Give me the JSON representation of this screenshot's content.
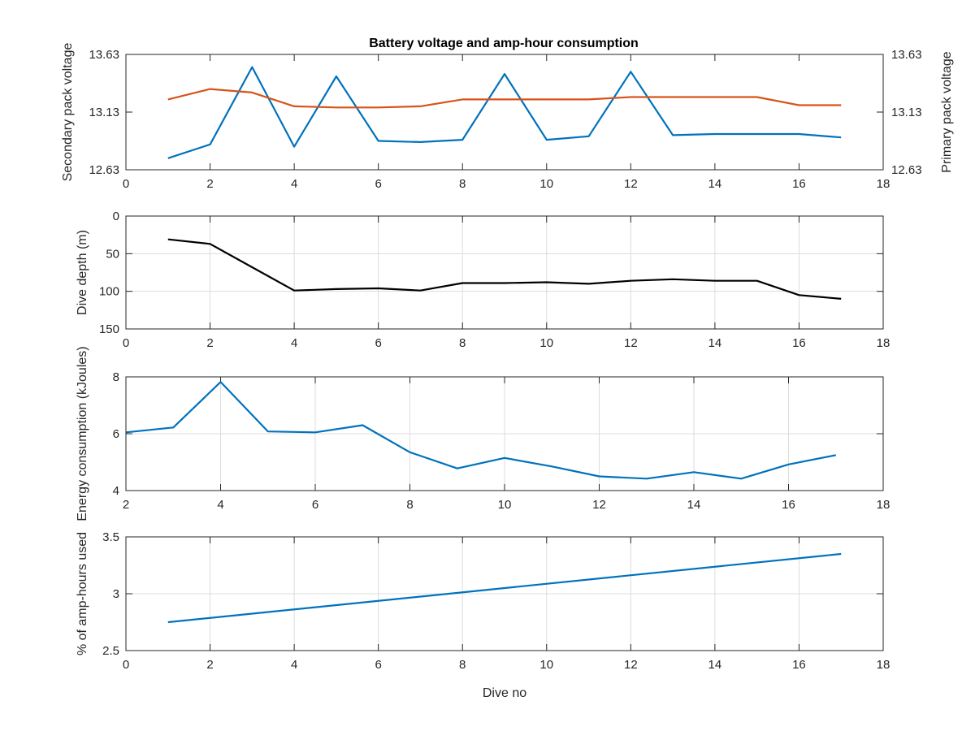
{
  "chart_data": [
    {
      "type": "line",
      "title": "Battery voltage and amp-hour consumption",
      "xlim": [
        0,
        18
      ],
      "xticks": [
        0,
        2,
        4,
        6,
        8,
        10,
        12,
        14,
        16,
        18
      ],
      "ylabel_left": "Secondary pack voltage",
      "ylabel_right": "Primary pack voltage",
      "ylim": [
        12.63,
        13.63
      ],
      "yticks": [
        12.63,
        13.13,
        13.63
      ],
      "grid": false,
      "colors": {
        "left": "#0072BD",
        "right": "#D95319"
      },
      "series": [
        {
          "axis": "left",
          "x": [
            1,
            2,
            3,
            4,
            5,
            6,
            7,
            8,
            9,
            10,
            11,
            12,
            13,
            14,
            15,
            16,
            17
          ],
          "values": [
            12.73,
            12.85,
            13.52,
            12.83,
            13.44,
            12.88,
            12.87,
            12.89,
            13.46,
            12.89,
            12.92,
            13.48,
            12.93,
            12.94,
            12.94,
            12.94,
            12.91
          ]
        },
        {
          "axis": "right",
          "x": [
            1,
            2,
            3,
            4,
            5,
            6,
            7,
            8,
            9,
            10,
            11,
            12,
            13,
            14,
            15,
            16,
            17
          ],
          "values": [
            13.24,
            13.33,
            13.3,
            13.18,
            13.17,
            13.17,
            13.18,
            13.24,
            13.24,
            13.24,
            13.24,
            13.26,
            13.26,
            13.26,
            13.26,
            13.19,
            13.19
          ]
        }
      ]
    },
    {
      "type": "line",
      "ylabel": "Dive depth (m)",
      "xlim": [
        0,
        18
      ],
      "xticks": [
        0,
        2,
        4,
        6,
        8,
        10,
        12,
        14,
        16,
        18
      ],
      "ylim": [
        0,
        150
      ],
      "yticks": [
        0,
        50,
        100,
        150
      ],
      "y_reversed": true,
      "grid": true,
      "colors": {
        "line": "#000000"
      },
      "series": [
        {
          "x": [
            1,
            2,
            3,
            4,
            5,
            6,
            7,
            8,
            9,
            10,
            11,
            12,
            13,
            14,
            15,
            16,
            17
          ],
          "values": [
            31,
            37,
            68,
            99,
            97,
            96,
            99,
            89,
            89,
            88,
            90,
            86,
            84,
            86,
            86,
            105,
            110
          ]
        }
      ]
    },
    {
      "type": "line",
      "ylabel": "Energy consumption (kJoules)",
      "xlim": [
        2,
        18
      ],
      "xticks": [
        2,
        4,
        6,
        8,
        10,
        12,
        14,
        16,
        18
      ],
      "ylim": [
        4,
        8
      ],
      "yticks": [
        4,
        6,
        8
      ],
      "grid": true,
      "colors": {
        "line": "#0072BD"
      },
      "series": [
        {
          "x": [
            2,
            3,
            4,
            5,
            6,
            7,
            8,
            9,
            10,
            11,
            12,
            13,
            14,
            15,
            16,
            17
          ],
          "values": [
            6.05,
            6.22,
            7.82,
            6.08,
            6.05,
            6.3,
            5.35,
            4.78,
            5.15,
            4.85,
            4.5,
            4.42,
            4.65,
            4.42,
            4.92,
            5.25
          ]
        }
      ]
    },
    {
      "type": "line",
      "ylabel": "% of amp-hours used",
      "xlabel": "Dive no",
      "xlim": [
        0,
        18
      ],
      "xticks": [
        0,
        2,
        4,
        6,
        8,
        10,
        12,
        14,
        16,
        18
      ],
      "ylim": [
        2.5,
        3.5
      ],
      "yticks": [
        2.5,
        3,
        3.5
      ],
      "grid": true,
      "colors": {
        "line": "#0072BD"
      },
      "series": [
        {
          "x": [
            1,
            17
          ],
          "values": [
            2.75,
            3.35
          ]
        }
      ]
    }
  ]
}
